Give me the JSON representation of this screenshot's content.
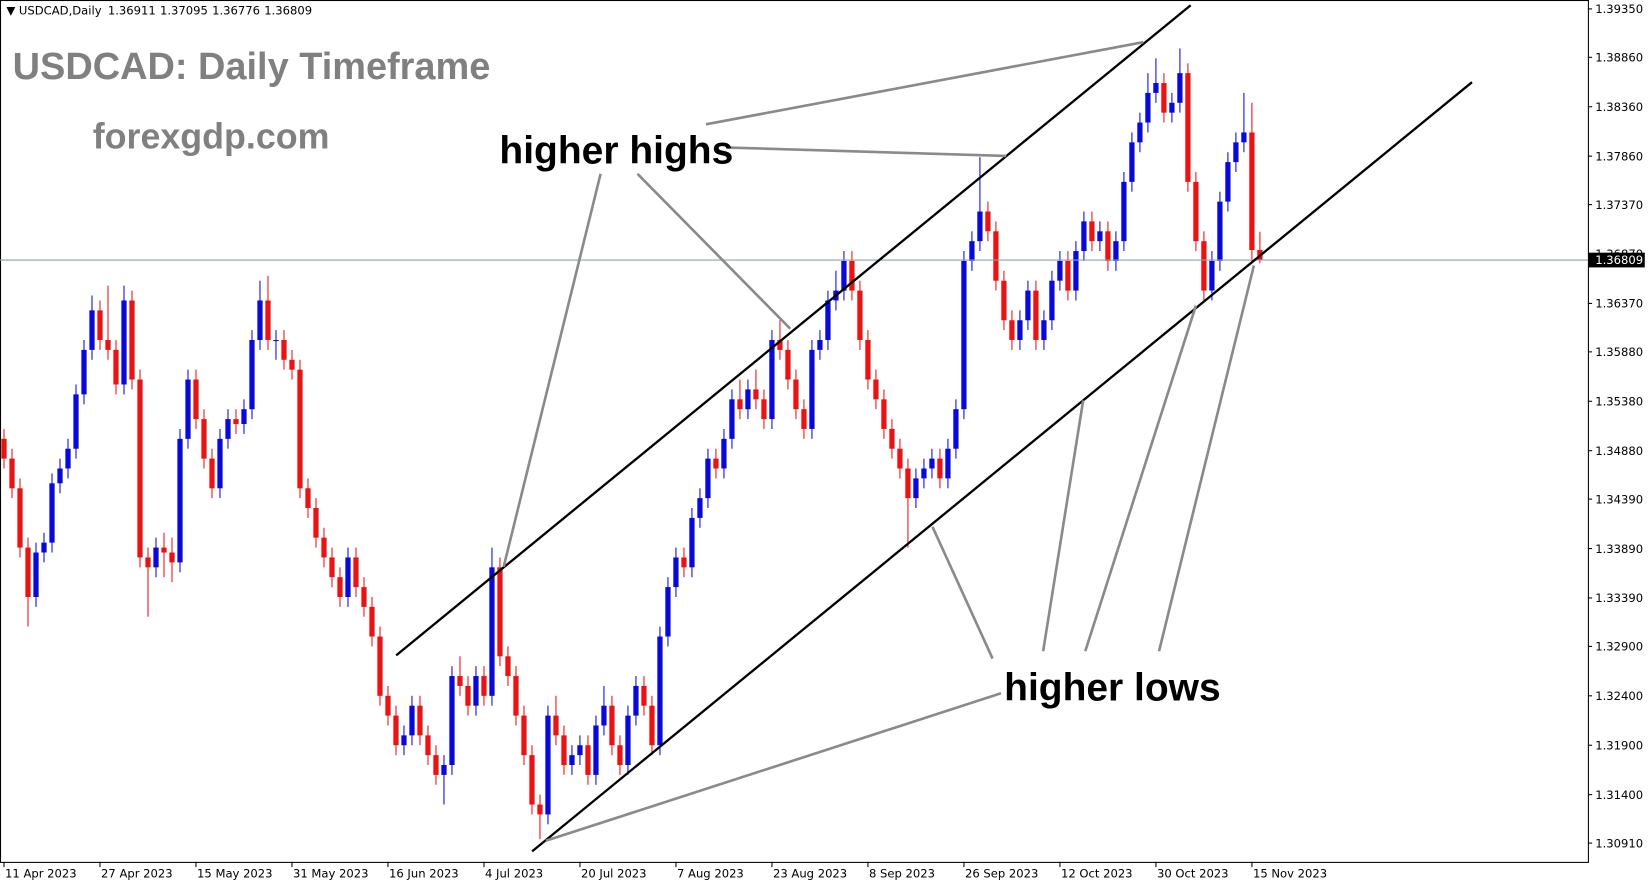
{
  "chart_data": {
    "type": "candlestick",
    "symbol": "USDCAD,Daily",
    "title": "USDCAD: Daily Timeframe",
    "subtitle": "forexgdp.com",
    "annotations": [
      "higher highs",
      "higher lows"
    ],
    "up_color": "#0a0ad8",
    "down_color": "#e81313",
    "ylim": [
      1.3072,
      1.3944
    ],
    "xlim": [
      -0.5,
      198
    ],
    "yticks": [
      {
        "value": 1.3935,
        "label": "1.39350"
      },
      {
        "value": 1.3886,
        "label": "1.38860"
      },
      {
        "value": 1.3836,
        "label": "1.38360"
      },
      {
        "value": 1.3786,
        "label": "1.37860"
      },
      {
        "value": 1.3737,
        "label": "1.37370"
      },
      {
        "value": 1.3687,
        "label": "1.36870"
      },
      {
        "value": 1.3637,
        "label": "1.36370"
      },
      {
        "value": 1.3588,
        "label": "1.35880"
      },
      {
        "value": 1.3538,
        "label": "1.35380"
      },
      {
        "value": 1.3488,
        "label": "1.34880"
      },
      {
        "value": 1.3439,
        "label": "1.34390"
      },
      {
        "value": 1.3389,
        "label": "1.33890"
      },
      {
        "value": 1.3339,
        "label": "1.33390"
      },
      {
        "value": 1.329,
        "label": "1.32900"
      },
      {
        "value": 1.324,
        "label": "1.32400"
      },
      {
        "value": 1.319,
        "label": "1.31900"
      },
      {
        "value": 1.314,
        "label": "1.31400"
      },
      {
        "value": 1.3091,
        "label": "1.30910"
      }
    ],
    "xticks": [
      {
        "value": 0,
        "label": "11 Apr 2023"
      },
      {
        "value": 12,
        "label": "27 Apr 2023"
      },
      {
        "value": 24,
        "label": "15 May 2023"
      },
      {
        "value": 36,
        "label": "31 May 2023"
      },
      {
        "value": 48,
        "label": "16 Jun 2023"
      },
      {
        "value": 60,
        "label": "4 Jul 2023"
      },
      {
        "value": 72,
        "label": "20 Jul 2023"
      },
      {
        "value": 84,
        "label": "7 Aug 2023"
      },
      {
        "value": 96,
        "label": "23 Aug 2023"
      },
      {
        "value": 108,
        "label": "8 Sep 2023"
      },
      {
        "value": 120,
        "label": "26 Sep 2023"
      },
      {
        "value": 132,
        "label": "12 Oct 2023"
      },
      {
        "value": 144,
        "label": "30 Oct 2023"
      },
      {
        "value": 156,
        "label": "15 Nov 2023"
      }
    ],
    "ohlc": [
      [
        1.35,
        1.351,
        1.347,
        1.348
      ],
      [
        1.348,
        1.349,
        1.344,
        1.345
      ],
      [
        1.345,
        1.346,
        1.338,
        1.339
      ],
      [
        1.339,
        1.34,
        1.331,
        1.334
      ],
      [
        1.334,
        1.3395,
        1.333,
        1.3385
      ],
      [
        1.3385,
        1.3405,
        1.3375,
        1.3395
      ],
      [
        1.3395,
        1.3465,
        1.3385,
        1.3455
      ],
      [
        1.3455,
        1.348,
        1.3445,
        1.347
      ],
      [
        1.347,
        1.35,
        1.346,
        1.349
      ],
      [
        1.349,
        1.3555,
        1.348,
        1.3545
      ],
      [
        1.3545,
        1.36,
        1.3535,
        1.359
      ],
      [
        1.359,
        1.3645,
        1.358,
        1.363
      ],
      [
        1.363,
        1.364,
        1.359,
        1.36
      ],
      [
        1.36,
        1.3655,
        1.358,
        1.359
      ],
      [
        1.359,
        1.36,
        1.3545,
        1.3555
      ],
      [
        1.3555,
        1.3655,
        1.3545,
        1.364
      ],
      [
        1.364,
        1.365,
        1.355,
        1.356
      ],
      [
        1.356,
        1.357,
        1.337,
        1.338
      ],
      [
        1.338,
        1.339,
        1.332,
        1.337
      ],
      [
        1.337,
        1.34,
        1.336,
        1.339
      ],
      [
        1.339,
        1.3405,
        1.336,
        1.3385
      ],
      [
        1.3385,
        1.34,
        1.3355,
        1.3375
      ],
      [
        1.3375,
        1.351,
        1.3365,
        1.35
      ],
      [
        1.35,
        1.357,
        1.349,
        1.356
      ],
      [
        1.356,
        1.357,
        1.351,
        1.352
      ],
      [
        1.352,
        1.353,
        1.347,
        1.348
      ],
      [
        1.348,
        1.349,
        1.344,
        1.345
      ],
      [
        1.345,
        1.351,
        1.344,
        1.35
      ],
      [
        1.35,
        1.353,
        1.349,
        1.352
      ],
      [
        1.352,
        1.353,
        1.3505,
        1.3515
      ],
      [
        1.3515,
        1.354,
        1.3505,
        1.353
      ],
      [
        1.353,
        1.361,
        1.352,
        1.36
      ],
      [
        1.36,
        1.366,
        1.359,
        1.364
      ],
      [
        1.364,
        1.3665,
        1.359,
        1.36
      ],
      [
        1.36,
        1.361,
        1.358,
        1.36
      ],
      [
        1.36,
        1.361,
        1.357,
        1.358
      ],
      [
        1.358,
        1.359,
        1.356,
        1.357
      ],
      [
        1.357,
        1.358,
        1.344,
        1.345
      ],
      [
        1.345,
        1.346,
        1.342,
        1.343
      ],
      [
        1.343,
        1.344,
        1.339,
        1.34
      ],
      [
        1.34,
        1.341,
        1.337,
        1.338
      ],
      [
        1.338,
        1.339,
        1.335,
        1.336
      ],
      [
        1.336,
        1.337,
        1.333,
        1.334
      ],
      [
        1.334,
        1.339,
        1.333,
        1.338
      ],
      [
        1.338,
        1.339,
        1.334,
        1.335
      ],
      [
        1.335,
        1.336,
        1.332,
        1.333
      ],
      [
        1.333,
        1.334,
        1.329,
        1.33
      ],
      [
        1.33,
        1.331,
        1.323,
        1.324
      ],
      [
        1.324,
        1.325,
        1.321,
        1.322
      ],
      [
        1.322,
        1.323,
        1.318,
        1.319
      ],
      [
        1.319,
        1.321,
        1.318,
        1.32
      ],
      [
        1.32,
        1.324,
        1.319,
        1.323
      ],
      [
        1.323,
        1.324,
        1.319,
        1.32
      ],
      [
        1.32,
        1.321,
        1.317,
        1.318
      ],
      [
        1.318,
        1.319,
        1.315,
        1.316
      ],
      [
        1.316,
        1.318,
        1.313,
        1.317
      ],
      [
        1.317,
        1.327,
        1.316,
        1.326
      ],
      [
        1.326,
        1.328,
        1.324,
        1.325
      ],
      [
        1.325,
        1.326,
        1.322,
        1.323
      ],
      [
        1.323,
        1.327,
        1.322,
        1.326
      ],
      [
        1.326,
        1.327,
        1.323,
        1.324
      ],
      [
        1.324,
        1.339,
        1.323,
        1.337
      ],
      [
        1.337,
        1.338,
        1.327,
        1.328
      ],
      [
        1.328,
        1.329,
        1.325,
        1.326
      ],
      [
        1.326,
        1.327,
        1.321,
        1.322
      ],
      [
        1.322,
        1.323,
        1.317,
        1.318
      ],
      [
        1.318,
        1.319,
        1.312,
        1.313
      ],
      [
        1.313,
        1.314,
        1.3095,
        1.312
      ],
      [
        1.312,
        1.323,
        1.311,
        1.322
      ],
      [
        1.322,
        1.324,
        1.319,
        1.32
      ],
      [
        1.32,
        1.321,
        1.316,
        1.317
      ],
      [
        1.317,
        1.319,
        1.316,
        1.318
      ],
      [
        1.318,
        1.32,
        1.317,
        1.319
      ],
      [
        1.319,
        1.32,
        1.315,
        1.316
      ],
      [
        1.316,
        1.322,
        1.315,
        1.321
      ],
      [
        1.321,
        1.325,
        1.32,
        1.323
      ],
      [
        1.323,
        1.324,
        1.318,
        1.319
      ],
      [
        1.319,
        1.32,
        1.316,
        1.317
      ],
      [
        1.317,
        1.323,
        1.316,
        1.322
      ],
      [
        1.322,
        1.326,
        1.321,
        1.325
      ],
      [
        1.325,
        1.326,
        1.322,
        1.323
      ],
      [
        1.323,
        1.324,
        1.318,
        1.319
      ],
      [
        1.319,
        1.331,
        1.318,
        1.33
      ],
      [
        1.33,
        1.336,
        1.329,
        1.335
      ],
      [
        1.335,
        1.339,
        1.334,
        1.338
      ],
      [
        1.338,
        1.339,
        1.336,
        1.337
      ],
      [
        1.337,
        1.343,
        1.336,
        1.342
      ],
      [
        1.342,
        1.345,
        1.341,
        1.344
      ],
      [
        1.344,
        1.349,
        1.343,
        1.348
      ],
      [
        1.348,
        1.349,
        1.346,
        1.347
      ],
      [
        1.347,
        1.351,
        1.346,
        1.35
      ],
      [
        1.35,
        1.355,
        1.349,
        1.354
      ],
      [
        1.354,
        1.356,
        1.352,
        1.353
      ],
      [
        1.353,
        1.356,
        1.352,
        1.355
      ],
      [
        1.355,
        1.357,
        1.353,
        1.354
      ],
      [
        1.354,
        1.355,
        1.351,
        1.352
      ],
      [
        1.352,
        1.361,
        1.351,
        1.36
      ],
      [
        1.36,
        1.362,
        1.358,
        1.359
      ],
      [
        1.359,
        1.36,
        1.355,
        1.356
      ],
      [
        1.356,
        1.357,
        1.352,
        1.353
      ],
      [
        1.353,
        1.354,
        1.35,
        1.351
      ],
      [
        1.351,
        1.36,
        1.35,
        1.359
      ],
      [
        1.359,
        1.361,
        1.358,
        1.36
      ],
      [
        1.36,
        1.365,
        1.359,
        1.364
      ],
      [
        1.364,
        1.367,
        1.363,
        1.365
      ],
      [
        1.365,
        1.369,
        1.364,
        1.368
      ],
      [
        1.368,
        1.369,
        1.364,
        1.365
      ],
      [
        1.365,
        1.366,
        1.359,
        1.36
      ],
      [
        1.36,
        1.361,
        1.355,
        1.356
      ],
      [
        1.356,
        1.357,
        1.353,
        1.354
      ],
      [
        1.354,
        1.355,
        1.35,
        1.351
      ],
      [
        1.351,
        1.352,
        1.348,
        1.349
      ],
      [
        1.349,
        1.35,
        1.346,
        1.347
      ],
      [
        1.347,
        1.348,
        1.339,
        1.344
      ],
      [
        1.344,
        1.347,
        1.343,
        1.346
      ],
      [
        1.346,
        1.348,
        1.345,
        1.347
      ],
      [
        1.347,
        1.349,
        1.346,
        1.348
      ],
      [
        1.348,
        1.349,
        1.345,
        1.346
      ],
      [
        1.346,
        1.35,
        1.345,
        1.349
      ],
      [
        1.349,
        1.354,
        1.348,
        1.353
      ],
      [
        1.353,
        1.369,
        1.352,
        1.368
      ],
      [
        1.368,
        1.371,
        1.367,
        1.37
      ],
      [
        1.37,
        1.3785,
        1.369,
        1.373
      ],
      [
        1.373,
        1.374,
        1.37,
        1.371
      ],
      [
        1.371,
        1.372,
        1.365,
        1.366
      ],
      [
        1.366,
        1.367,
        1.361,
        1.362
      ],
      [
        1.362,
        1.363,
        1.359,
        1.36
      ],
      [
        1.36,
        1.363,
        1.359,
        1.362
      ],
      [
        1.362,
        1.366,
        1.361,
        1.365
      ],
      [
        1.365,
        1.366,
        1.359,
        1.36
      ],
      [
        1.36,
        1.363,
        1.359,
        1.362
      ],
      [
        1.362,
        1.367,
        1.361,
        1.366
      ],
      [
        1.366,
        1.369,
        1.365,
        1.368
      ],
      [
        1.368,
        1.369,
        1.364,
        1.365
      ],
      [
        1.365,
        1.37,
        1.364,
        1.369
      ],
      [
        1.369,
        1.373,
        1.368,
        1.372
      ],
      [
        1.372,
        1.373,
        1.369,
        1.37
      ],
      [
        1.37,
        1.372,
        1.369,
        1.371
      ],
      [
        1.371,
        1.372,
        1.367,
        1.368
      ],
      [
        1.368,
        1.371,
        1.367,
        1.37
      ],
      [
        1.37,
        1.377,
        1.369,
        1.376
      ],
      [
        1.376,
        1.381,
        1.375,
        1.38
      ],
      [
        1.38,
        1.383,
        1.379,
        1.382
      ],
      [
        1.382,
        1.387,
        1.381,
        1.385
      ],
      [
        1.385,
        1.3885,
        1.384,
        1.386
      ],
      [
        1.386,
        1.387,
        1.382,
        1.383
      ],
      [
        1.383,
        1.385,
        1.382,
        1.384
      ],
      [
        1.384,
        1.3895,
        1.383,
        1.387
      ],
      [
        1.387,
        1.388,
        1.375,
        1.376
      ],
      [
        1.376,
        1.377,
        1.369,
        1.37
      ],
      [
        1.37,
        1.371,
        1.364,
        1.365
      ],
      [
        1.365,
        1.369,
        1.364,
        1.368
      ],
      [
        1.368,
        1.375,
        1.367,
        1.374
      ],
      [
        1.374,
        1.379,
        1.373,
        1.378
      ],
      [
        1.378,
        1.381,
        1.377,
        1.38
      ],
      [
        1.38,
        1.385,
        1.379,
        1.381
      ],
      [
        1.381,
        1.384,
        1.368,
        1.3691
      ],
      [
        1.36911,
        1.37095,
        1.36776,
        1.36809
      ]
    ]
  }
}
